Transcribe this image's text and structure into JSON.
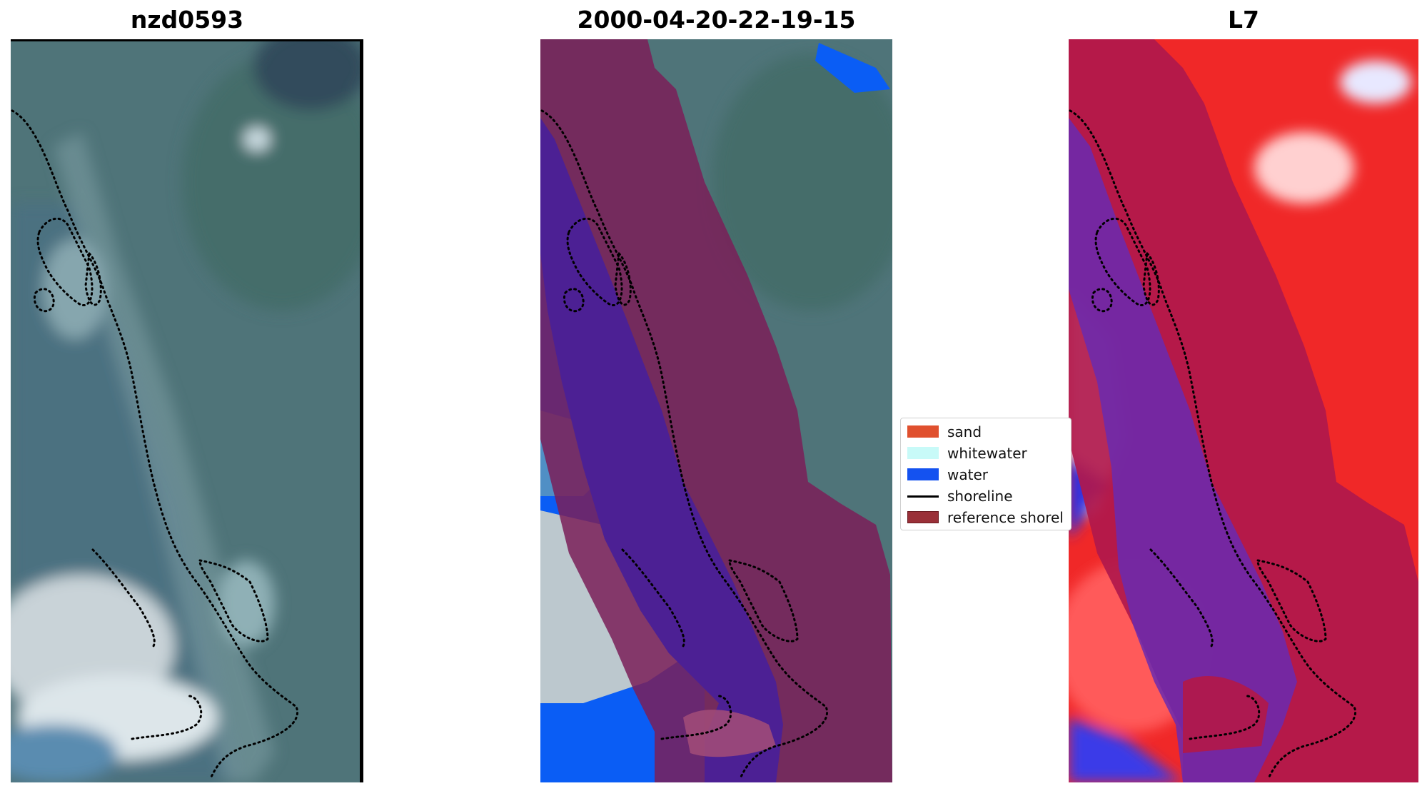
{
  "panels": [
    {
      "title": "nzd0593"
    },
    {
      "title": "2000-04-20-22-19-15"
    },
    {
      "title": "L7"
    }
  ],
  "legend": {
    "items": [
      {
        "label": "sand",
        "color": "#e0502e",
        "kind": "patch"
      },
      {
        "label": "whitewater",
        "color": "#c8faf8",
        "kind": "patch"
      },
      {
        "label": "water",
        "color": "#1452f0",
        "kind": "patch"
      },
      {
        "label": "shoreline",
        "color": "#000000",
        "kind": "line"
      },
      {
        "label": "reference shorel",
        "color": "#9a3038",
        "kind": "patch"
      }
    ]
  },
  "colors": {
    "imagery_base": "#4f7479",
    "classified_overlay": "#7a1f58",
    "water_class": "#0a5df5",
    "water_overlap": "#4c2094",
    "index_red": "#f02828",
    "index_crimson": "#b0184c",
    "index_blue": "#3030e0"
  }
}
